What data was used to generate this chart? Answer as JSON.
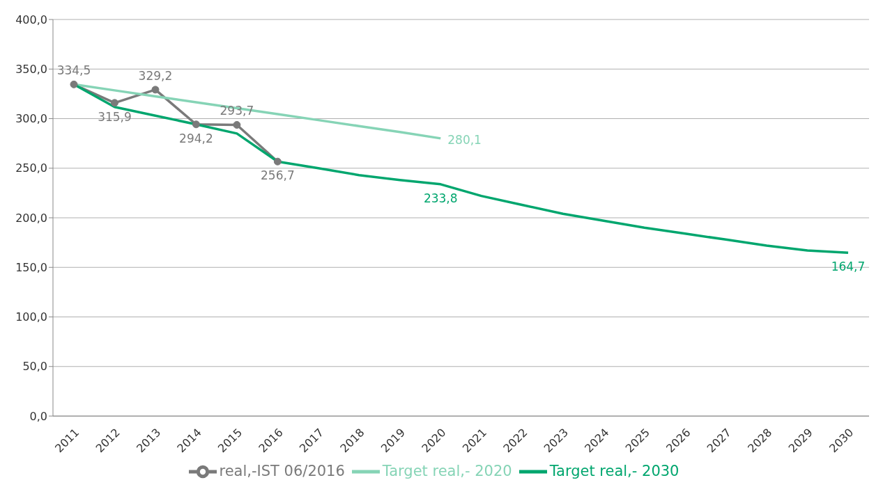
{
  "chart_data": {
    "type": "line",
    "categories": [
      "2011",
      "2012",
      "2013",
      "2014",
      "2015",
      "2016",
      "2017",
      "2018",
      "2019",
      "2020",
      "2021",
      "2022",
      "2023",
      "2024",
      "2025",
      "2026",
      "2027",
      "2028",
      "2029",
      "2030"
    ],
    "series": [
      {
        "name": "real,-IST 06/2016",
        "color": "#7a7a7a",
        "marker": "circle",
        "values": [
          334.5,
          315.9,
          329.2,
          294.2,
          293.7,
          256.7,
          null,
          null,
          null,
          null,
          null,
          null,
          null,
          null,
          null,
          null,
          null,
          null,
          null,
          null
        ],
        "value_labels": [
          "334,5",
          "315,9",
          "329,2",
          "294,2",
          "293,7",
          "256,7",
          null,
          null,
          null,
          null,
          null,
          null,
          null,
          null,
          null,
          null,
          null,
          null,
          null,
          null
        ]
      },
      {
        "name": "Target real,- 2020",
        "color": "#86d4b6",
        "marker": "none",
        "values": [
          334.5,
          328.5,
          322.5,
          316.5,
          310.5,
          304.5,
          298.5,
          292.5,
          286.5,
          280.1,
          null,
          null,
          null,
          null,
          null,
          null,
          null,
          null,
          null,
          null
        ],
        "value_labels": [
          null,
          null,
          null,
          null,
          null,
          null,
          null,
          null,
          null,
          "280,1",
          null,
          null,
          null,
          null,
          null,
          null,
          null,
          null,
          null,
          null
        ]
      },
      {
        "name": "Target real,- 2030",
        "color": "#00a66e",
        "marker": "none",
        "values": [
          334.5,
          311.8,
          303,
          294.2,
          285,
          256.7,
          250,
          243,
          238,
          233.8,
          222,
          213,
          204,
          197,
          190,
          184,
          178,
          172,
          167,
          164.7
        ],
        "value_labels": [
          null,
          null,
          null,
          null,
          null,
          null,
          null,
          null,
          null,
          "233,8",
          null,
          null,
          null,
          null,
          null,
          null,
          null,
          null,
          null,
          "164,7"
        ]
      }
    ],
    "ylim": [
      0,
      400
    ],
    "yticks": [
      {
        "value": 0,
        "label": "0,0"
      },
      {
        "value": 50,
        "label": "50,0"
      },
      {
        "value": 100,
        "label": "100,0"
      },
      {
        "value": 150,
        "label": "150,0"
      },
      {
        "value": 200,
        "label": "200,0"
      },
      {
        "value": 250,
        "label": "250,0"
      },
      {
        "value": 300,
        "label": "300,0"
      },
      {
        "value": 350,
        "label": "350,0"
      },
      {
        "value": 400,
        "label": "400,0"
      }
    ],
    "grid": "y",
    "legend": "bottom",
    "line_style": "solid"
  }
}
